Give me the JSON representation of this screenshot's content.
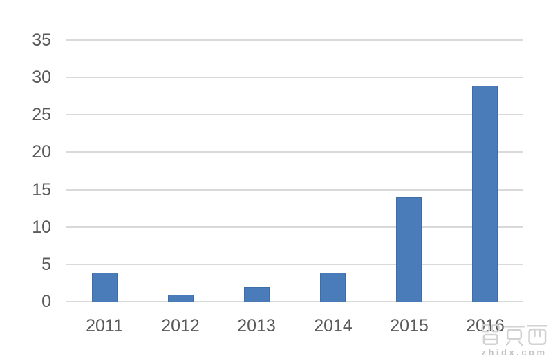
{
  "chart_data": {
    "type": "bar",
    "title": "",
    "xlabel": "",
    "ylabel": "",
    "categories": [
      "2011",
      "2012",
      "2013",
      "2014",
      "2015",
      "2016"
    ],
    "values": [
      4,
      1,
      2,
      4,
      14,
      29
    ],
    "ylim": [
      0,
      35
    ],
    "ytick_interval": 5,
    "grid": true,
    "legend": "none",
    "bar_color": "#4a7cba",
    "bar_border_color": "#3e6ea5",
    "gridline_color": "#d9d9d9",
    "axis_text_color": "#595959",
    "background_color": "#ffffff"
  },
  "watermark": {
    "logo_text": "智东西",
    "url": "zhidx.com",
    "color": "#d2d2d2"
  }
}
